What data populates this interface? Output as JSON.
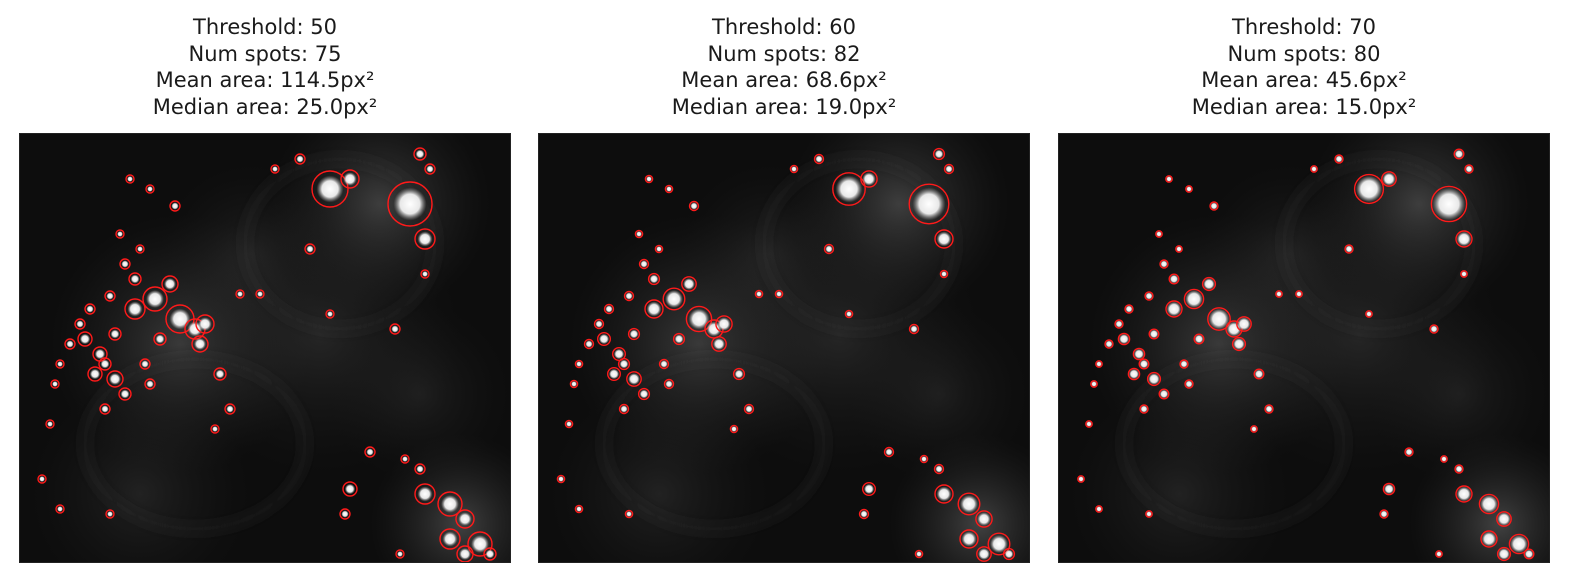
{
  "panels": [
    {
      "threshold_line": "Threshold: 50",
      "spots_line": "Num spots: 75",
      "mean_line": "Mean area: 114.5px²",
      "median_line": "Median area: 25.0px²",
      "threshold": 50,
      "num_spots": 75,
      "mean_area_px2": 114.5,
      "median_area_px2": 25.0
    },
    {
      "threshold_line": "Threshold: 60",
      "spots_line": "Num spots: 82",
      "mean_line": "Mean area: 68.6px²",
      "median_line": "Median area: 19.0px²",
      "threshold": 60,
      "num_spots": 82,
      "mean_area_px2": 68.6,
      "median_area_px2": 19.0
    },
    {
      "threshold_line": "Threshold: 70",
      "spots_line": "Num spots: 80",
      "mean_line": "Mean area: 45.6px²",
      "median_line": "Median area: 15.0px²",
      "threshold": 70,
      "num_spots": 80,
      "mean_area_px2": 45.6,
      "median_area_px2": 15.0
    }
  ],
  "colors": {
    "contour": "#ff1a1a",
    "background": "#0d0d0d",
    "cell_glow": "#3a3a3a",
    "spot": "#ffffff"
  }
}
